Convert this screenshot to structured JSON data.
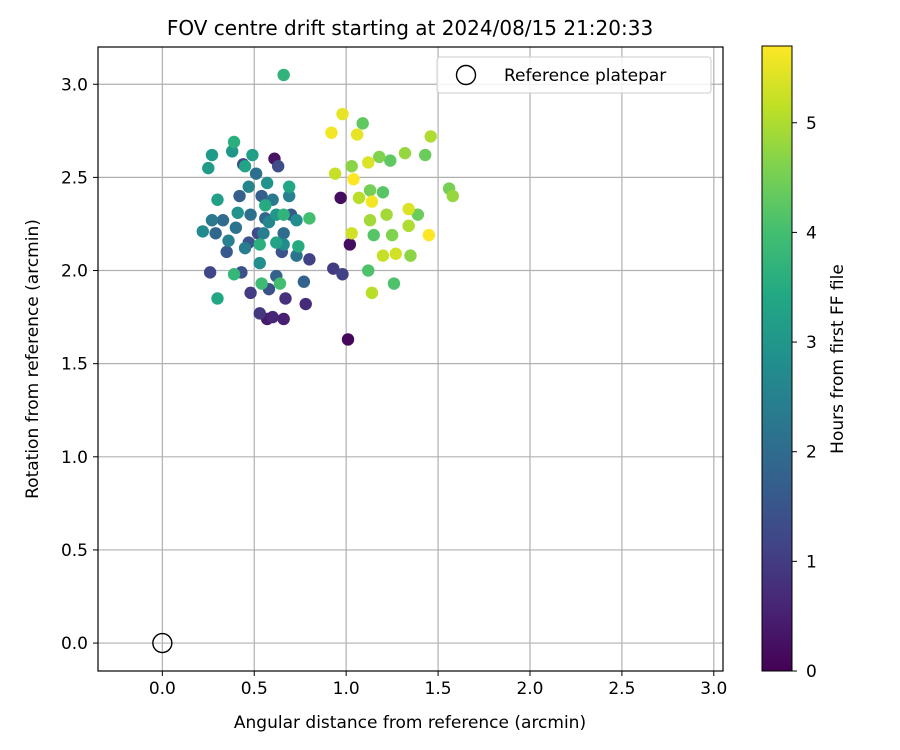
{
  "chart_data": {
    "type": "scatter",
    "title": "FOV centre drift starting at 2024/08/15 21:20:33",
    "xlabel": "Angular distance from reference (arcmin)",
    "ylabel": "Rotation from reference (arcmin)",
    "xlim": [
      -0.35,
      3.05
    ],
    "ylim": [
      -0.15,
      3.2
    ],
    "xticks": [
      0.0,
      0.5,
      1.0,
      1.5,
      2.0,
      2.5,
      3.0
    ],
    "xtick_labels": [
      "0.0",
      "0.5",
      "1.0",
      "1.5",
      "2.0",
      "2.5",
      "3.0"
    ],
    "yticks": [
      0.0,
      0.5,
      1.0,
      1.5,
      2.0,
      2.5,
      3.0
    ],
    "ytick_labels": [
      "0.0",
      "0.5",
      "1.0",
      "1.5",
      "2.0",
      "2.5",
      "3.0"
    ],
    "grid": true,
    "legend": {
      "placement": "top-right",
      "entries": [
        {
          "label": "Reference platepar",
          "marker": "open-circle",
          "color": "#000000"
        }
      ]
    },
    "reference_point": {
      "x": 0.0,
      "y": 0.0
    },
    "colorbar": {
      "label": "Hours from first FF file",
      "colormap": "viridis",
      "range": [
        0,
        5.7
      ],
      "ticks": [
        0,
        1,
        2,
        3,
        4,
        5
      ],
      "tick_labels": [
        "0",
        "1",
        "2",
        "3",
        "4",
        "5"
      ]
    },
    "points": [
      [
        1.01,
        1.63,
        0.1
      ],
      [
        0.97,
        2.39,
        0.2
      ],
      [
        1.02,
        2.14,
        0.2
      ],
      [
        0.61,
        2.6,
        0.3
      ],
      [
        0.57,
        1.74,
        0.4
      ],
      [
        0.66,
        1.74,
        0.5
      ],
      [
        0.6,
        1.75,
        0.6
      ],
      [
        0.78,
        1.82,
        0.7
      ],
      [
        0.67,
        1.85,
        0.8
      ],
      [
        0.53,
        1.77,
        0.9
      ],
      [
        0.48,
        1.88,
        1.0
      ],
      [
        0.93,
        2.01,
        1.0
      ],
      [
        0.98,
        1.98,
        1.1
      ],
      [
        0.8,
        2.06,
        1.1
      ],
      [
        0.26,
        1.99,
        1.2
      ],
      [
        0.44,
        2.57,
        1.2
      ],
      [
        0.63,
        2.56,
        1.3
      ],
      [
        0.52,
        2.2,
        1.3
      ],
      [
        0.43,
        1.99,
        1.4
      ],
      [
        0.58,
        1.9,
        1.4
      ],
      [
        0.65,
        2.1,
        1.5
      ],
      [
        0.47,
        2.15,
        1.5
      ],
      [
        0.35,
        2.1,
        1.6
      ],
      [
        0.7,
        2.3,
        1.6
      ],
      [
        0.54,
        2.4,
        1.7
      ],
      [
        0.42,
        2.4,
        1.7
      ],
      [
        0.62,
        1.97,
        1.8
      ],
      [
        0.77,
        1.94,
        1.8
      ],
      [
        0.29,
        2.2,
        1.9
      ],
      [
        0.56,
        2.28,
        1.9
      ],
      [
        0.33,
        2.27,
        2.0
      ],
      [
        0.66,
        2.2,
        2.0
      ],
      [
        0.48,
        2.3,
        2.1
      ],
      [
        0.51,
        2.52,
        2.1
      ],
      [
        0.73,
        2.08,
        2.2
      ],
      [
        0.4,
        2.23,
        2.2
      ],
      [
        0.27,
        2.27,
        2.3
      ],
      [
        0.6,
        2.38,
        2.3
      ],
      [
        0.45,
        2.12,
        2.4
      ],
      [
        0.55,
        2.2,
        2.4
      ],
      [
        0.69,
        2.4,
        2.5
      ],
      [
        0.36,
        2.16,
        2.5
      ],
      [
        0.58,
        2.26,
        2.6
      ],
      [
        0.47,
        2.45,
        2.6
      ],
      [
        0.22,
        2.21,
        2.7
      ],
      [
        0.66,
        2.14,
        2.7
      ],
      [
        0.53,
        2.04,
        2.8
      ],
      [
        0.73,
        2.27,
        2.8
      ],
      [
        0.41,
        2.31,
        2.9
      ],
      [
        0.57,
        2.47,
        2.9
      ],
      [
        0.62,
        2.3,
        3.0
      ],
      [
        0.38,
        2.64,
        3.0
      ],
      [
        0.27,
        2.62,
        3.1
      ],
      [
        0.25,
        2.55,
        3.1
      ],
      [
        0.3,
        2.38,
        3.2
      ],
      [
        0.49,
        2.62,
        3.2
      ],
      [
        0.45,
        2.56,
        3.3
      ],
      [
        0.62,
        2.15,
        3.3
      ],
      [
        0.3,
        1.85,
        3.4
      ],
      [
        0.69,
        2.45,
        3.4
      ],
      [
        0.56,
        2.35,
        3.5
      ],
      [
        0.74,
        2.13,
        3.5
      ],
      [
        0.39,
        2.69,
        3.6
      ],
      [
        0.53,
        2.14,
        3.6
      ],
      [
        0.66,
        3.05,
        3.7
      ],
      [
        0.66,
        2.3,
        3.7
      ],
      [
        0.39,
        1.98,
        3.8
      ],
      [
        0.54,
        1.93,
        3.9
      ],
      [
        0.64,
        1.93,
        4.0
      ],
      [
        0.8,
        2.28,
        4.0
      ],
      [
        1.12,
        2.0,
        4.1
      ],
      [
        1.26,
        1.93,
        4.1
      ],
      [
        1.15,
        2.19,
        4.2
      ],
      [
        1.2,
        2.42,
        4.2
      ],
      [
        1.24,
        2.59,
        4.3
      ],
      [
        1.09,
        2.79,
        4.3
      ],
      [
        1.39,
        2.3,
        4.4
      ],
      [
        1.43,
        2.62,
        4.4
      ],
      [
        1.13,
        2.43,
        4.5
      ],
      [
        1.56,
        2.44,
        4.5
      ],
      [
        1.18,
        2.61,
        4.6
      ],
      [
        1.25,
        2.19,
        4.6
      ],
      [
        1.03,
        2.56,
        4.7
      ],
      [
        1.35,
        2.08,
        4.7
      ],
      [
        1.58,
        2.4,
        4.8
      ],
      [
        1.32,
        2.63,
        4.8
      ],
      [
        1.13,
        2.27,
        4.9
      ],
      [
        1.22,
        2.3,
        4.9
      ],
      [
        1.46,
        2.72,
        5.0
      ],
      [
        1.34,
        2.24,
        5.0
      ],
      [
        1.07,
        2.39,
        5.1
      ],
      [
        1.14,
        1.88,
        5.1
      ],
      [
        1.2,
        2.08,
        5.2
      ],
      [
        0.94,
        2.52,
        5.2
      ],
      [
        1.27,
        2.09,
        5.3
      ],
      [
        1.03,
        2.2,
        5.3
      ],
      [
        1.12,
        2.58,
        5.4
      ],
      [
        1.34,
        2.33,
        5.4
      ],
      [
        0.98,
        2.84,
        5.5
      ],
      [
        1.06,
        2.73,
        5.5
      ],
      [
        1.14,
        2.37,
        5.6
      ],
      [
        0.92,
        2.74,
        5.6
      ],
      [
        1.04,
        2.49,
        5.7
      ],
      [
        1.45,
        2.19,
        5.7
      ]
    ]
  }
}
